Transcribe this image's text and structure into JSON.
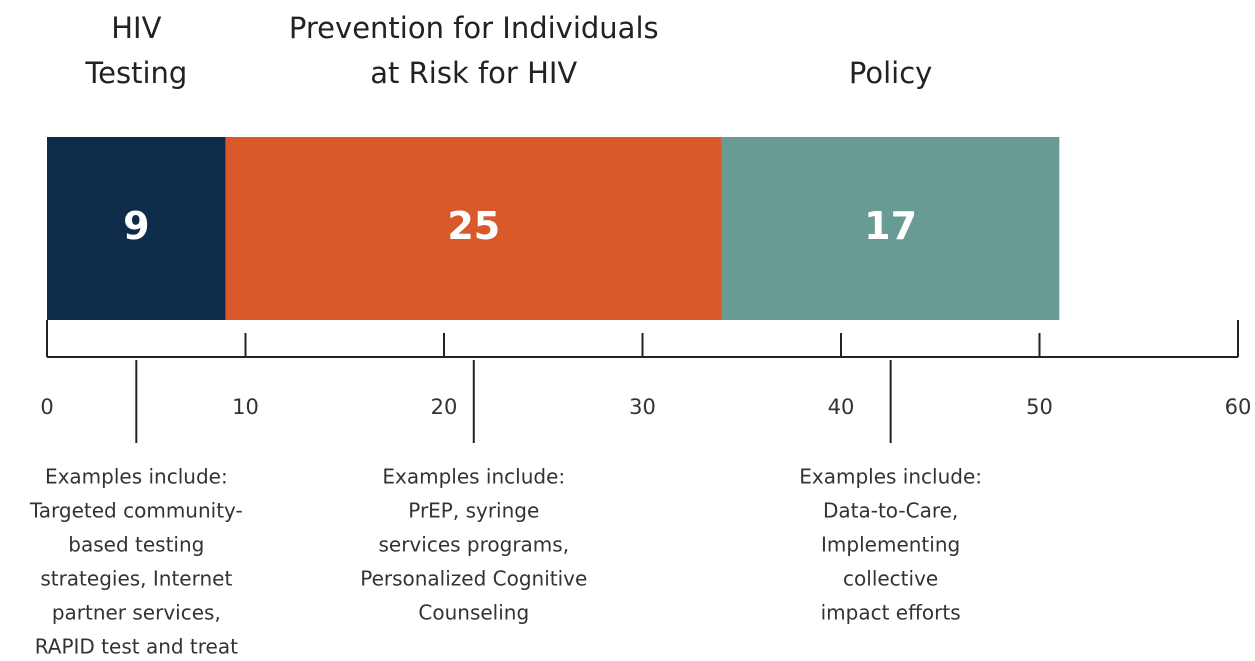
{
  "chart_data": {
    "type": "stacked-bar",
    "series": [
      {
        "name": [
          "HIV",
          "Testing"
        ],
        "color": "#0e2b4a",
        "values": [
          9
        ],
        "note": [
          "Examples include:",
          "Targeted community-",
          "based testing",
          "strategies, Internet",
          "partner services,",
          "RAPID test and treat"
        ]
      },
      {
        "name": [
          "Prevention for Individuals",
          "at Risk for HIV"
        ],
        "color": "#d9592a",
        "values": [
          25
        ],
        "note": [
          "Examples include:",
          "PrEP, syringe",
          "services programs,",
          "Personalized Cognitive",
          "Counseling"
        ]
      },
      {
        "name": [
          "Policy"
        ],
        "color": "#679b94",
        "values": [
          17
        ],
        "note": [
          "Examples include:",
          "Data-to-Care,",
          "Implementing",
          "collective",
          "impact efforts"
        ]
      }
    ],
    "xlim": [
      0,
      60
    ],
    "xticks": [
      0,
      10,
      20,
      30,
      40,
      50,
      60
    ]
  }
}
